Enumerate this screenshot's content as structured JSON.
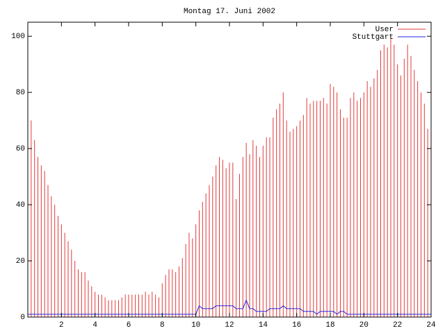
{
  "chart_data": {
    "type": "impulse",
    "title": "Montag 17. Juni 2002",
    "x": [
      0,
      0.2,
      0.4,
      0.6,
      0.8,
      1,
      1.2,
      1.4,
      1.6,
      1.8,
      2,
      2.2,
      2.4,
      2.6,
      2.8,
      3,
      3.2,
      3.4,
      3.6,
      3.8,
      4,
      4.2,
      4.4,
      4.6,
      4.8,
      5,
      5.2,
      5.4,
      5.6,
      5.8,
      6,
      6.2,
      6.4,
      6.6,
      6.8,
      7,
      7.2,
      7.4,
      7.6,
      7.8,
      8,
      8.2,
      8.4,
      8.6,
      8.8,
      9,
      9.2,
      9.4,
      9.6,
      9.8,
      10,
      10.2,
      10.4,
      10.6,
      10.8,
      11,
      11.2,
      11.4,
      11.6,
      11.8,
      12,
      12.2,
      12.4,
      12.6,
      12.8,
      13,
      13.2,
      13.4,
      13.6,
      13.8,
      14,
      14.2,
      14.4,
      14.6,
      14.8,
      15,
      15.2,
      15.4,
      15.6,
      15.8,
      16,
      16.2,
      16.4,
      16.6,
      16.8,
      17,
      17.2,
      17.4,
      17.6,
      17.8,
      18,
      18.2,
      18.4,
      18.6,
      18.8,
      19,
      19.2,
      19.4,
      19.6,
      19.8,
      20,
      20.2,
      20.4,
      20.6,
      20.8,
      21,
      21.2,
      21.4,
      21.6,
      21.8,
      22,
      22.2,
      22.4,
      22.6,
      22.8,
      23,
      23.2,
      23.4,
      23.6,
      23.8,
      24
    ],
    "series": [
      {
        "name": "User",
        "color": "#e03a3a",
        "style": "impulses",
        "values": [
          76,
          70,
          63,
          57,
          54,
          52,
          47,
          43,
          40,
          36,
          33,
          30,
          27,
          24,
          20,
          17,
          16,
          16,
          13,
          11,
          9,
          8,
          8,
          7,
          6,
          6,
          6,
          6,
          7,
          8,
          8,
          8,
          8,
          8,
          8,
          9,
          8,
          9,
          8,
          7,
          12,
          15,
          17,
          17,
          16,
          18,
          21,
          26,
          30,
          28,
          33,
          38,
          41,
          44,
          47,
          50,
          54,
          57,
          56,
          53,
          55,
          55,
          42,
          51,
          57,
          62,
          58,
          63,
          61,
          57,
          61,
          64,
          64,
          71,
          74,
          76,
          80,
          70,
          66,
          67,
          68,
          70,
          72,
          78,
          76,
          77,
          77,
          77,
          78,
          76,
          83,
          82,
          80,
          74,
          71,
          71,
          78,
          80,
          77,
          78,
          80,
          84,
          82,
          85,
          88,
          95,
          97,
          96,
          100,
          97,
          90,
          86,
          92,
          97,
          93,
          88,
          84,
          80,
          76,
          67,
          69
        ]
      },
      {
        "name": "Stuttgart",
        "color": "#2020e0",
        "style": "lines",
        "values": [
          1,
          1,
          1,
          1,
          1,
          1,
          1,
          1,
          1,
          1,
          1,
          1,
          1,
          1,
          1,
          1,
          1,
          1,
          1,
          1,
          1,
          1,
          1,
          1,
          1,
          1,
          1,
          1,
          1,
          1,
          1,
          1,
          1,
          1,
          1,
          1,
          1,
          1,
          1,
          1,
          1,
          1,
          1,
          1,
          1,
          1,
          1,
          1,
          1,
          1,
          1,
          4,
          3,
          3,
          3,
          3,
          4,
          4,
          4,
          4,
          4,
          4,
          3,
          3,
          3,
          6,
          3,
          3,
          2,
          2,
          2,
          2,
          3,
          3,
          3,
          3,
          4,
          3,
          3,
          3,
          3,
          3,
          2,
          2,
          2,
          2,
          1,
          2,
          2,
          2,
          2,
          2,
          1,
          2,
          2,
          1,
          1,
          1,
          1,
          1,
          1,
          1,
          1,
          1,
          1,
          1,
          1,
          1,
          1,
          1,
          1,
          1,
          1,
          1,
          1,
          1,
          1,
          1,
          1,
          1,
          1
        ]
      }
    ],
    "xlim": [
      0,
      24
    ],
    "ylim": [
      0,
      105
    ],
    "xticks": [
      2,
      4,
      6,
      8,
      10,
      12,
      14,
      16,
      18,
      20,
      22,
      24
    ],
    "yticks": [
      0,
      20,
      40,
      60,
      80,
      100
    ],
    "legend": "top-right"
  }
}
